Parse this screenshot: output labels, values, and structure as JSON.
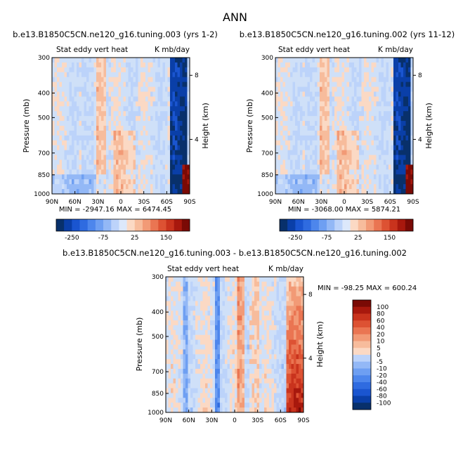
{
  "figure_title": "ANN",
  "colors": {
    "neg_scale": [
      "#08306b",
      "#0a3fa8",
      "#1a55d0",
      "#2f6be0",
      "#4d86ec",
      "#6e9ff2",
      "#93b8f6",
      "#bcd3fa"
    ],
    "neutral": "#dce8fb",
    "pos_scale": [
      "#fbd9c4",
      "#f7bc9c",
      "#f29a76",
      "#ea7552",
      "#dd5233",
      "#c9331d",
      "#a8180d",
      "#7a0a05"
    ],
    "background_field": "#cfe0f8"
  },
  "chart_data": [
    {
      "type": "heatmap",
      "title": "b.e13.B1850C5CN.ne120_g16.tuning.003 (yrs 1-2)",
      "subtitle_left": "Stat eddy vert heat",
      "subtitle_right": "K mb/day",
      "ylabel": "Pressure (mb)",
      "ylabel_right": "Height (km)",
      "x_ticks": [
        "90N",
        "60N",
        "30N",
        "0",
        "30S",
        "60S",
        "90S"
      ],
      "y_ticks": [
        "300",
        "400",
        "500",
        "700",
        "850",
        "1000"
      ],
      "y_ticks_right": [
        "8",
        "4"
      ],
      "stats": "MIN = -2947.16   MAX = 6474.45",
      "colorbar_labels": [
        "-250",
        "-75",
        "25",
        "150"
      ]
    },
    {
      "type": "heatmap",
      "title": "b.e13.B1850C5CN.ne120_g16.tuning.002 (yrs 11-12)",
      "subtitle_left": "Stat eddy vert heat",
      "subtitle_right": "K mb/day",
      "ylabel": "Pressure (mb)",
      "ylabel_right": "Height (km)",
      "x_ticks": [
        "90N",
        "60N",
        "30N",
        "0",
        "30S",
        "60S",
        "90S"
      ],
      "y_ticks": [
        "300",
        "400",
        "500",
        "700",
        "850",
        "1000"
      ],
      "y_ticks_right": [
        "8",
        "4"
      ],
      "stats": "MIN = -3068.00   MAX = 5874.21",
      "colorbar_labels": [
        "-250",
        "-75",
        "25",
        "150"
      ]
    },
    {
      "type": "heatmap",
      "title": "b.e13.B1850C5CN.ne120_g16.tuning.003 - b.e13.B1850C5CN.ne120_g16.tuning.002",
      "subtitle_left": "Stat eddy vert heat",
      "subtitle_right": "K mb/day",
      "ylabel": "Pressure (mb)",
      "ylabel_right": "Height (km)",
      "x_ticks": [
        "90N",
        "60N",
        "30N",
        "0",
        "30S",
        "60S",
        "90S"
      ],
      "y_ticks": [
        "300",
        "400",
        "500",
        "700",
        "850",
        "1000"
      ],
      "y_ticks_right": [
        "8",
        "4"
      ],
      "stats": "MIN = -98.25   MAX = 600.24",
      "colorbar_labels": [
        "100",
        "80",
        "60",
        "40",
        "20",
        "10",
        "5",
        "0",
        "-5",
        "-10",
        "-20",
        "-40",
        "-60",
        "-80",
        "-100"
      ]
    }
  ]
}
